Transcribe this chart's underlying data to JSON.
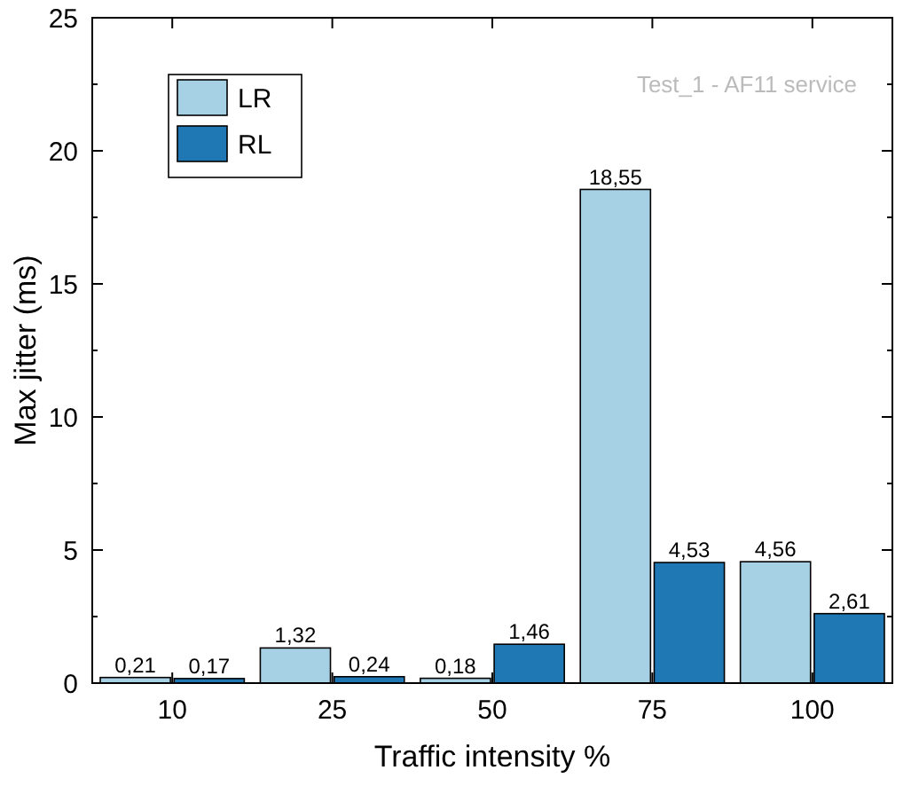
{
  "chart_data": {
    "type": "bar",
    "xlabel": "Traffic intensity %",
    "ylabel": "Max jitter (ms)",
    "categories": [
      "10",
      "25",
      "50",
      "75",
      "100"
    ],
    "series": [
      {
        "name": "LR",
        "color": "#a6d0e4",
        "values": [
          0.21,
          1.32,
          0.18,
          18.55,
          4.56
        ],
        "value_labels": [
          "0,21",
          "1,32",
          "0,18",
          "18,55",
          "4,56"
        ]
      },
      {
        "name": "RL",
        "color": "#1f78b4",
        "values": [
          0.17,
          0.24,
          1.46,
          4.53,
          2.61
        ],
        "value_labels": [
          "0,17",
          "0,24",
          "1,46",
          "4,53",
          "2,61"
        ]
      }
    ],
    "ylim": [
      0,
      25
    ],
    "yticks": [
      0,
      5,
      10,
      15,
      20,
      25
    ],
    "grid": false,
    "legend": "top left",
    "annotations": [
      "Test_1 - AF11 service"
    ]
  }
}
